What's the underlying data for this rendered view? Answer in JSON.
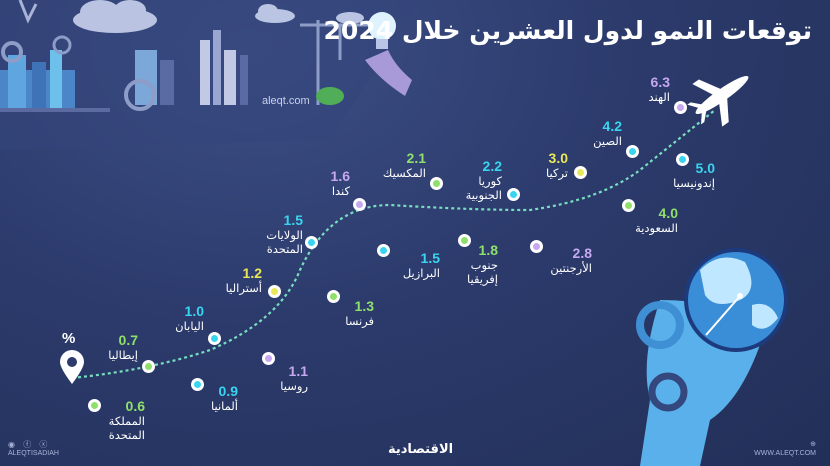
{
  "title": "توقعات النمو لدول العشرين خلال 2024",
  "site": "aleqt.com",
  "unit_symbol": "%",
  "brand": "الاقتصادية",
  "footer_left": "ALEQTISADIAH",
  "footer_left_icons": "◉ ⓕ ⓧ",
  "footer_right_icon": "⊕",
  "footer_right": "WWW.ALEQT.COM",
  "colors": {
    "green": "#8ee06a",
    "cyan": "#39d5f0",
    "purple": "#c5a8f0",
    "yellow": "#e8e85a",
    "path": "#7ff0c8",
    "background": "#2c3b6c"
  },
  "icons": [
    "map-pin-icon",
    "airplane-icon",
    "gear-icon",
    "globe-icon",
    "hand-icon",
    "lightbulb-icon",
    "crane-icon",
    "cloud-icon"
  ],
  "countries": [
    {
      "name": "المملكة",
      "name2": "المتحدة",
      "value": "0.6",
      "color": "green"
    },
    {
      "name": "إيطاليا",
      "name2": "",
      "value": "0.7",
      "color": "green"
    },
    {
      "name": "ألمانيا",
      "name2": "",
      "value": "0.9",
      "color": "cyan"
    },
    {
      "name": "اليابان",
      "name2": "",
      "value": "1.0",
      "color": "cyan"
    },
    {
      "name": "روسيا",
      "name2": "",
      "value": "1.1",
      "color": "purple"
    },
    {
      "name": "أستراليا",
      "name2": "",
      "value": "1.2",
      "color": "yellow"
    },
    {
      "name": "فرنسا",
      "name2": "",
      "value": "1.3",
      "color": "green"
    },
    {
      "name": "الولايات",
      "name2": "المتحدة",
      "value": "1.5",
      "color": "cyan"
    },
    {
      "name": "البرازيل",
      "name2": "",
      "value": "1.5",
      "color": "cyan"
    },
    {
      "name": "كندا",
      "name2": "",
      "value": "1.6",
      "color": "purple"
    },
    {
      "name": "جنوب",
      "name2": "إفريقيا",
      "value": "1.8",
      "color": "green"
    },
    {
      "name": "المكسيك",
      "name2": "",
      "value": "2.1",
      "color": "green"
    },
    {
      "name": "كوريا",
      "name2": "الجنوبية",
      "value": "2.2",
      "color": "cyan"
    },
    {
      "name": "الأرجنتين",
      "name2": "",
      "value": "2.8",
      "color": "purple"
    },
    {
      "name": "تركيا",
      "name2": "",
      "value": "3.0",
      "color": "yellow"
    },
    {
      "name": "السعودية",
      "name2": "",
      "value": "4.0",
      "color": "green"
    },
    {
      "name": "الصين",
      "name2": "",
      "value": "4.2",
      "color": "cyan"
    },
    {
      "name": "إندونيسيا",
      "name2": "",
      "value": "5.0",
      "color": "cyan"
    },
    {
      "name": "الهند",
      "name2": "",
      "value": "6.3",
      "color": "purple"
    }
  ]
}
